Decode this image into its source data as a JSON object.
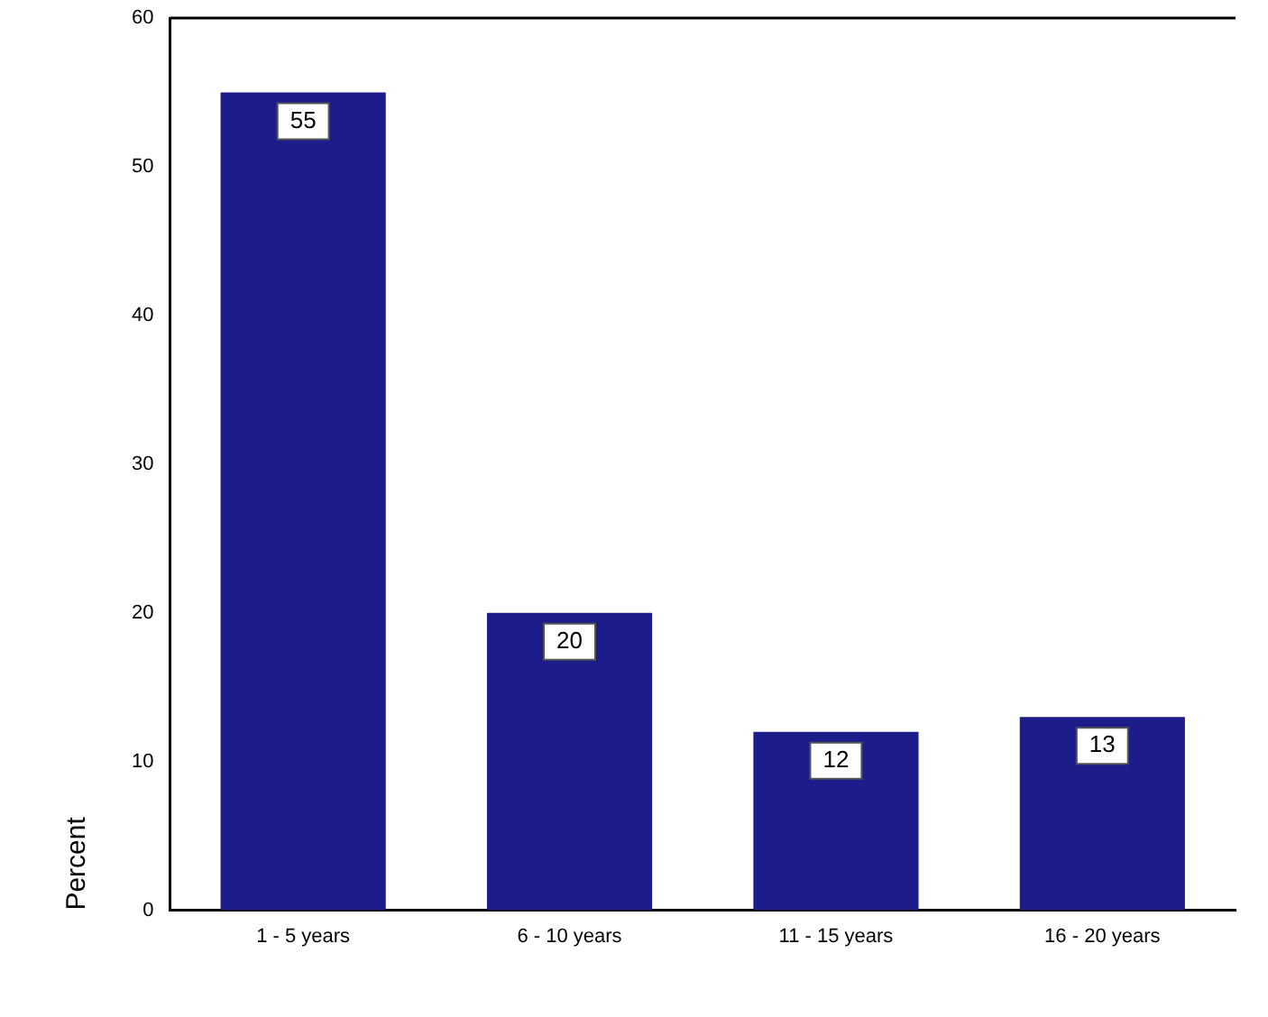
{
  "chart_data": {
    "type": "bar",
    "ylabel": "Percent",
    "categories": [
      "1 - 5 years",
      "6 - 10 years",
      "11 - 15 years",
      "16 - 20 years"
    ],
    "values": [
      55,
      20,
      12,
      13
    ],
    "color": "#1c1c8a",
    "ylim": [
      0,
      60
    ],
    "yticks": [
      0,
      10,
      20,
      30,
      40,
      50,
      60
    ],
    "grid": false,
    "legend": false,
    "data_labels": true
  }
}
